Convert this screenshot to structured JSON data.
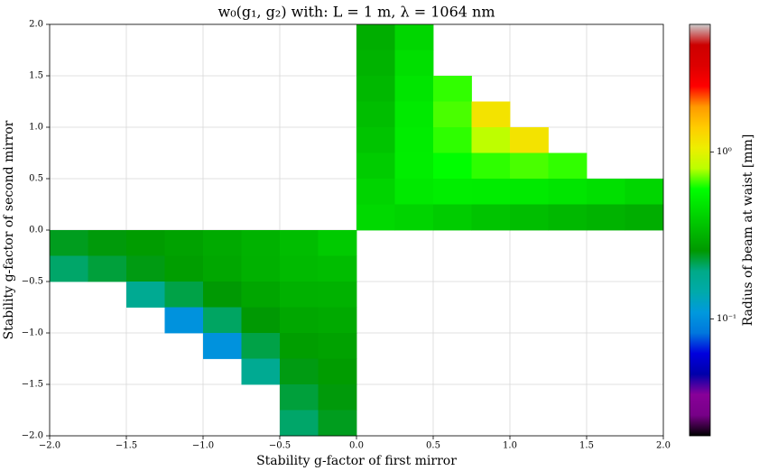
{
  "chart_data": {
    "type": "heatmap",
    "title": "w₀(g₁, g₂) with: L = 1 m, λ = 1064 nm",
    "xlabel": "Stability g-factor of first mirror",
    "ylabel": "Stability g-factor of second mirror",
    "colorbar_label": "Radius of beam at waist [mm]",
    "colormap": "nipy_spectral",
    "color_log": true,
    "grid": true,
    "x": [
      -1.875,
      -1.625,
      -1.375,
      -1.125,
      -0.875,
      -0.625,
      -0.375,
      -0.125,
      0.125,
      0.375,
      0.625,
      0.875,
      1.125,
      1.375,
      1.625,
      1.875
    ],
    "y": [
      1.875,
      1.625,
      1.375,
      1.125,
      0.875,
      0.625,
      0.375,
      0.125,
      -0.125,
      -0.375,
      -0.625,
      -0.875,
      -1.125,
      -1.375,
      -1.625,
      -1.875
    ],
    "values": [
      [
        null,
        null,
        null,
        null,
        null,
        null,
        null,
        null,
        0.306,
        0.428,
        null,
        null,
        null,
        null,
        null,
        null
      ],
      [
        null,
        null,
        null,
        null,
        null,
        null,
        null,
        null,
        0.318,
        0.46,
        null,
        null,
        null,
        null,
        null,
        null
      ],
      [
        null,
        null,
        null,
        null,
        null,
        null,
        null,
        null,
        0.332,
        0.485,
        0.647,
        null,
        null,
        null,
        null,
        null
      ],
      [
        null,
        null,
        null,
        null,
        null,
        null,
        null,
        null,
        0.349,
        0.505,
        0.671,
        1.159,
        null,
        null,
        null,
        null
      ],
      [
        null,
        null,
        null,
        null,
        null,
        null,
        null,
        null,
        0.368,
        0.518,
        0.644,
        0.81,
        1.159,
        null,
        null,
        null
      ],
      [
        null,
        null,
        null,
        null,
        null,
        null,
        null,
        null,
        0.391,
        0.52,
        0.594,
        0.644,
        0.671,
        0.647,
        null,
        null
      ],
      [
        null,
        null,
        null,
        null,
        null,
        null,
        null,
        null,
        0.42,
        0.501,
        0.52,
        0.518,
        0.505,
        0.485,
        0.46,
        0.428
      ],
      [
        null,
        null,
        null,
        null,
        null,
        null,
        null,
        null,
        0.438,
        0.42,
        0.391,
        0.368,
        0.349,
        0.332,
        0.318,
        0.306
      ],
      [
        0.241,
        0.251,
        0.263,
        0.277,
        0.295,
        0.317,
        0.347,
        0.386,
        null,
        null,
        null,
        null,
        null,
        null,
        null,
        null
      ],
      [
        0.206,
        0.227,
        0.247,
        0.267,
        0.289,
        0.313,
        0.338,
        0.347,
        null,
        null,
        null,
        null,
        null,
        null,
        null,
        null
      ],
      [
        null,
        null,
        0.178,
        0.221,
        0.255,
        0.285,
        0.313,
        0.317,
        null,
        null,
        null,
        null,
        null,
        null,
        null,
        null
      ],
      [
        null,
        null,
        null,
        0.103,
        0.209,
        0.255,
        0.289,
        0.295,
        null,
        null,
        null,
        null,
        null,
        null,
        null,
        null
      ],
      [
        null,
        null,
        null,
        null,
        0.103,
        0.221,
        0.267,
        0.277,
        null,
        null,
        null,
        null,
        null,
        null,
        null,
        null
      ],
      [
        null,
        null,
        null,
        null,
        null,
        0.178,
        0.247,
        0.263,
        null,
        null,
        null,
        null,
        null,
        null,
        null,
        null
      ],
      [
        null,
        null,
        null,
        null,
        null,
        null,
        0.227,
        0.251,
        null,
        null,
        null,
        null,
        null,
        null,
        null,
        null
      ],
      [
        null,
        null,
        null,
        null,
        null,
        null,
        0.206,
        0.241,
        null,
        null,
        null,
        null,
        null,
        null,
        null,
        null
      ]
    ],
    "xlim": [
      -2,
      2
    ],
    "ylim": [
      -2,
      2
    ],
    "xticks": [
      {
        "value": -2,
        "label": "−2.0"
      },
      {
        "value": -1.5,
        "label": "−1.5"
      },
      {
        "value": -1,
        "label": "−1.0"
      },
      {
        "value": -0.5,
        "label": "−0.5"
      },
      {
        "value": 0,
        "label": "0.0"
      },
      {
        "value": 0.5,
        "label": "0.5"
      },
      {
        "value": 1,
        "label": "1.0"
      },
      {
        "value": 1.5,
        "label": "1.5"
      },
      {
        "value": 2,
        "label": "2.0"
      }
    ],
    "yticks": [
      {
        "value": -2,
        "label": "−2.0"
      },
      {
        "value": -1.5,
        "label": "−1.5"
      },
      {
        "value": -1,
        "label": "−1.0"
      },
      {
        "value": -0.5,
        "label": "−0.5"
      },
      {
        "value": 0,
        "label": "0.0"
      },
      {
        "value": 0.5,
        "label": "0.5"
      },
      {
        "value": 1,
        "label": "1.0"
      },
      {
        "value": 1.5,
        "label": "1.5"
      },
      {
        "value": 2,
        "label": "2.0"
      }
    ],
    "clim": [
      0.02,
      5.8
    ],
    "cticks": [
      {
        "value": 0.1,
        "label": "10⁻¹"
      },
      {
        "value": 1,
        "label": "10⁰"
      }
    ]
  }
}
